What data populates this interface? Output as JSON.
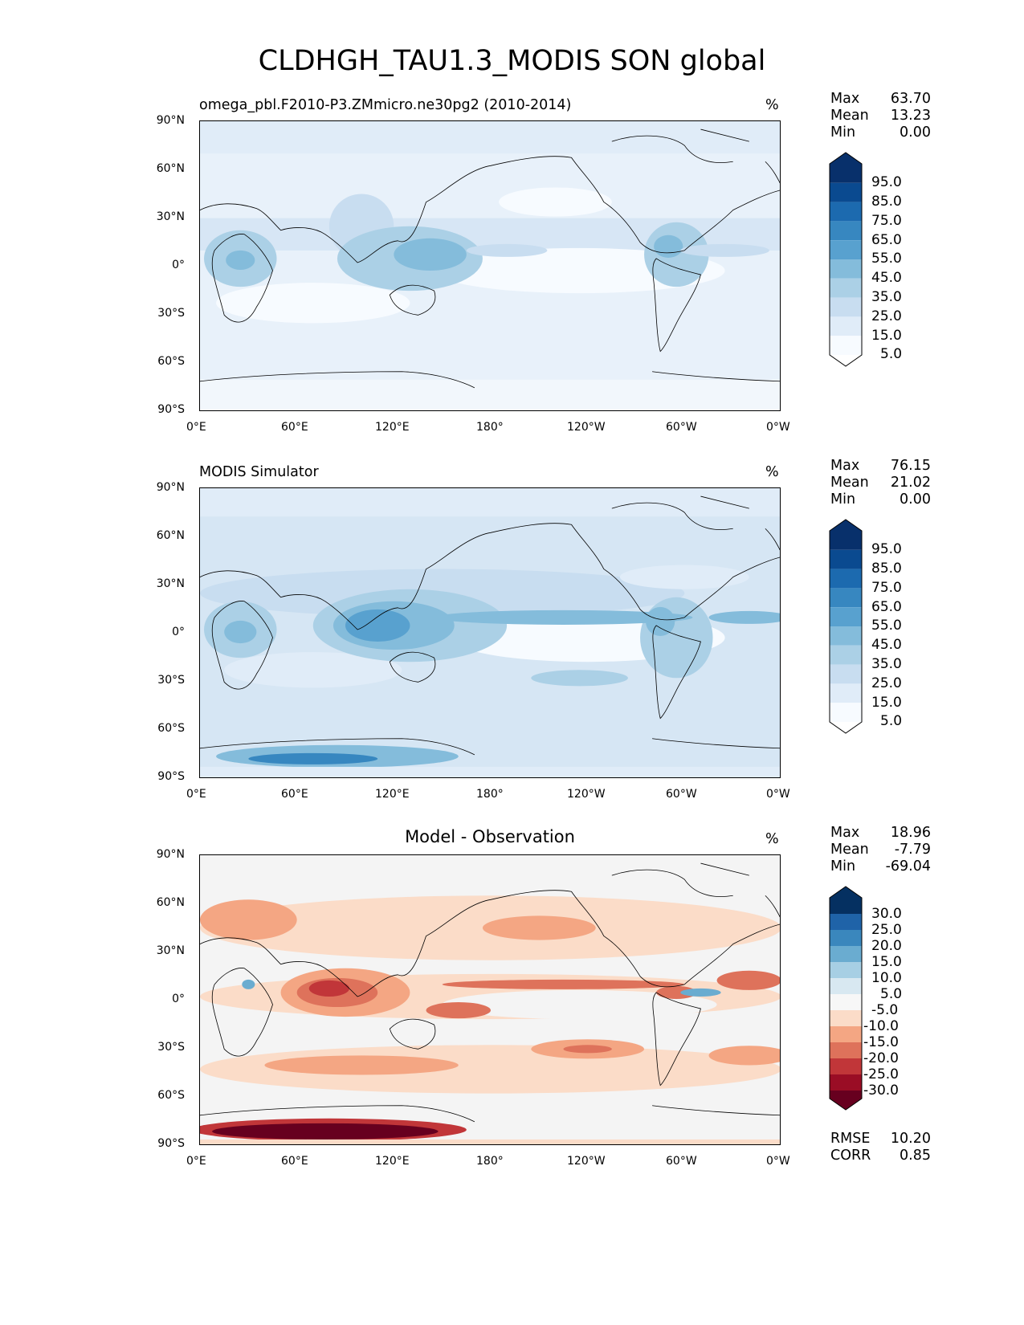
{
  "figure": {
    "title": "CLDHGH_TAU1.3_MODIS SON global"
  },
  "axes": {
    "lat_ticks": [
      "90°N",
      "60°N",
      "30°N",
      "0°",
      "30°S",
      "60°S",
      "90°S"
    ],
    "lon_ticks": [
      "0°E",
      "60°E",
      "120°E",
      "180°",
      "120°W",
      "60°W",
      "0°W"
    ]
  },
  "panels": [
    {
      "title": "omega_pbl.F2010-P3.ZMmicro.ne30pg2 (2010-2014)",
      "units": "%",
      "stats": {
        "max_label": "Max",
        "max": "63.70",
        "mean_label": "Mean",
        "mean": "13.23",
        "min_label": "Min",
        "min": "0.00"
      },
      "colorbar": {
        "ticks": [
          "95.0",
          "85.0",
          "75.0",
          "65.0",
          "55.0",
          "45.0",
          "35.0",
          "25.0",
          "15.0",
          "5.0"
        ],
        "colors": [
          "#08306b",
          "#0a4a90",
          "#1c6aaf",
          "#3787c0",
          "#58a1cf",
          "#84bcdb",
          "#abd0e6",
          "#c8ddf0",
          "#e0ecf8",
          "#f7fbff"
        ]
      }
    },
    {
      "title": "MODIS Simulator",
      "units": "%",
      "stats": {
        "max_label": "Max",
        "max": "76.15",
        "mean_label": "Mean",
        "mean": "21.02",
        "min_label": "Min",
        "min": "0.00"
      },
      "colorbar": {
        "ticks": [
          "95.0",
          "85.0",
          "75.0",
          "65.0",
          "55.0",
          "45.0",
          "35.0",
          "25.0",
          "15.0",
          "5.0"
        ],
        "colors": [
          "#08306b",
          "#0a4a90",
          "#1c6aaf",
          "#3787c0",
          "#58a1cf",
          "#84bcdb",
          "#abd0e6",
          "#c8ddf0",
          "#e0ecf8",
          "#f7fbff"
        ]
      }
    },
    {
      "title": "Model - Observation",
      "units": "%",
      "stats": {
        "max_label": "Max",
        "max": "18.96",
        "mean_label": "Mean",
        "mean": "-7.79",
        "min_label": "Min",
        "min": "-69.04"
      },
      "extra": {
        "rmse_label": "RMSE",
        "rmse": "10.20",
        "corr_label": "CORR",
        "corr": "0.85"
      },
      "colorbar": {
        "ticks": [
          "30.0",
          "25.0",
          "20.0",
          "15.0",
          "10.0",
          "5.0",
          "-5.0",
          "-10.0",
          "-15.0",
          "-20.0",
          "-25.0",
          "-30.0"
        ],
        "colors": [
          "#053061",
          "#1f63a8",
          "#3a87bd",
          "#6aacd0",
          "#a7cfe4",
          "#d8e8f1",
          "#f7f7f7",
          "#fbdcc8",
          "#f4a683",
          "#de725b",
          "#c13639",
          "#9a0d25",
          "#67001f"
        ]
      }
    }
  ]
}
